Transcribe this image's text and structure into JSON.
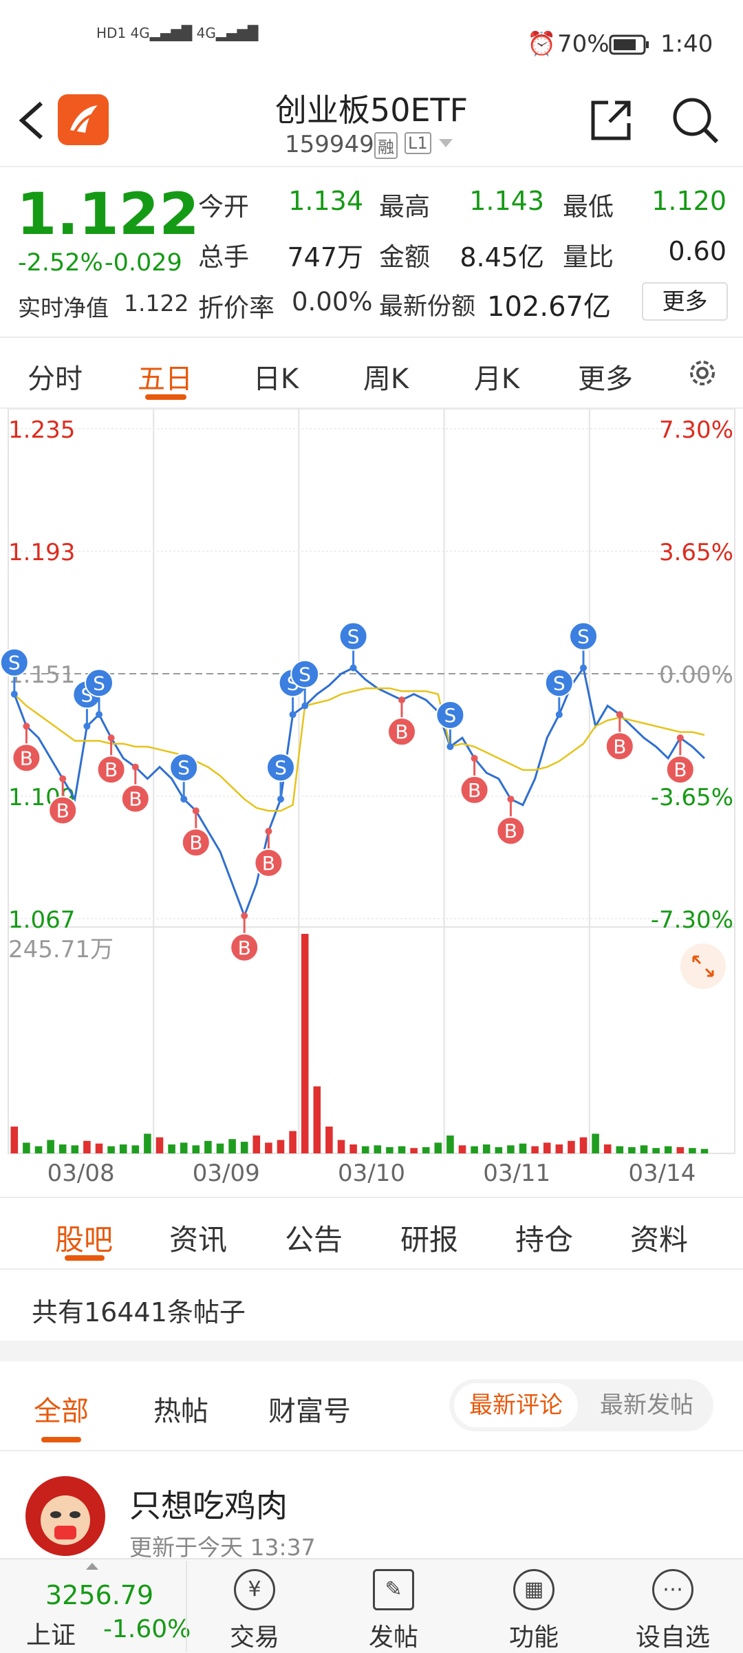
{
  "status_bar": {
    "battery": "70%",
    "time": "1:40"
  },
  "header": {
    "title": "创业板50ETF",
    "code": "159949",
    "badges": [
      "融",
      "L1"
    ]
  },
  "quote": {
    "price": "1.122",
    "change_pct": "-2.52%",
    "change": "-0.029",
    "nav_label": "实时净值",
    "nav": "1.122",
    "stats": [
      {
        "label": "今开",
        "value": "1.134"
      },
      {
        "label": "最高",
        "value": "1.143"
      },
      {
        "label": "最低",
        "value": "1.120"
      },
      {
        "label": "总手",
        "value": "747万"
      },
      {
        "label": "金额",
        "value": "8.45亿"
      },
      {
        "label": "量比",
        "value": "0.60"
      }
    ],
    "discount_label": "折价率",
    "discount": "0.00%",
    "shares_label": "最新份额",
    "shares": "102.67亿",
    "more": "更多"
  },
  "chart_tabs": [
    "分时",
    "五日",
    "日K",
    "周K",
    "月K",
    "更多"
  ],
  "chart_data": {
    "type": "line",
    "ylim": [
      1.067,
      1.235
    ],
    "yticks": [
      1.235,
      1.193,
      1.151,
      1.109,
      1.067
    ],
    "y2lim": [
      -7.3,
      7.3
    ],
    "y2ticks": [
      {
        "value": 7.3,
        "label": "7.30%"
      },
      {
        "value": 3.65,
        "label": "3.65%"
      },
      {
        "value": 0,
        "label": "0.00%"
      },
      {
        "value": -3.65,
        "label": "-3.65%"
      },
      {
        "value": -7.3,
        "label": "-7.30%"
      }
    ],
    "day_labels": [
      "03/08",
      "03/09",
      "03/10",
      "03/11",
      "03/14"
    ],
    "series": [
      {
        "color": "#2f6fd0",
        "values": [
          1.144,
          1.133,
          1.129,
          1.122,
          1.115,
          1.108,
          1.133,
          1.137,
          1.129,
          1.122,
          1.119,
          1.115,
          1.119,
          1.115,
          1.108,
          1.104,
          1.097,
          1.09,
          1.079,
          1.068,
          1.079,
          1.097,
          1.108,
          1.137,
          1.14,
          1.144,
          1.147,
          1.151,
          1.153,
          1.149,
          1.146,
          1.144,
          1.142,
          1.144,
          1.142,
          1.138,
          1.126,
          1.129,
          1.122,
          1.117,
          1.115,
          1.108,
          1.106,
          1.115,
          1.129,
          1.137,
          1.147,
          1.153,
          1.133,
          1.14,
          1.137,
          1.133,
          1.129,
          1.126,
          1.122,
          1.129,
          1.126,
          1.122
        ]
      },
      {
        "color": "#e6c31a",
        "values": [
          1.144,
          1.14,
          1.137,
          1.134,
          1.131,
          1.128,
          1.128,
          1.128,
          1.127,
          1.127,
          1.126,
          1.126,
          1.125,
          1.124,
          1.123,
          1.121,
          1.119,
          1.116,
          1.112,
          1.108,
          1.105,
          1.104,
          1.104,
          1.106,
          1.14,
          1.141,
          1.142,
          1.144,
          1.145,
          1.146,
          1.146,
          1.146,
          1.145,
          1.145,
          1.145,
          1.144,
          1.126,
          1.127,
          1.126,
          1.124,
          1.122,
          1.12,
          1.118,
          1.118,
          1.119,
          1.121,
          1.124,
          1.127,
          1.133,
          1.135,
          1.136,
          1.135,
          1.134,
          1.133,
          1.132,
          1.131,
          1.131,
          1.13
        ]
      }
    ],
    "volume": {
      "ylim": [
        0,
        245.71
      ],
      "yticks": [
        {
          "value": 245.71,
          "label": "245.71万"
        }
      ],
      "values": [
        30,
        12,
        8,
        15,
        10,
        9,
        14,
        11,
        8,
        10,
        9,
        22,
        18,
        10,
        12,
        9,
        14,
        11,
        16,
        13,
        20,
        12,
        15,
        25,
        245.71,
        75,
        30,
        15,
        10,
        8,
        9,
        7,
        8,
        6,
        7,
        12,
        20,
        9,
        8,
        10,
        7,
        9,
        11,
        8,
        12,
        10,
        14,
        18,
        22,
        10,
        8,
        7,
        9,
        6,
        8,
        7,
        6,
        5
      ]
    },
    "trade_markers": [
      {
        "label": "S",
        "index": 0
      },
      {
        "label": "B",
        "index": 1
      },
      {
        "label": "B",
        "index": 4
      },
      {
        "label": "S",
        "index": 6
      },
      {
        "label": "S",
        "index": 7
      },
      {
        "label": "B",
        "index": 8
      },
      {
        "label": "B",
        "index": 10
      },
      {
        "label": "S",
        "index": 14
      },
      {
        "label": "B",
        "index": 15
      },
      {
        "label": "B",
        "index": 19
      },
      {
        "label": "B",
        "index": 21
      },
      {
        "label": "S",
        "index": 22
      },
      {
        "label": "S",
        "index": 23
      },
      {
        "label": "S",
        "index": 24
      },
      {
        "label": "S",
        "index": 28
      },
      {
        "label": "B",
        "index": 32
      },
      {
        "label": "S",
        "index": 36
      },
      {
        "label": "B",
        "index": 38
      },
      {
        "label": "B",
        "index": 41
      },
      {
        "label": "S",
        "index": 45
      },
      {
        "label": "S",
        "index": 47
      },
      {
        "label": "B",
        "index": 50
      },
      {
        "label": "B",
        "index": 55
      }
    ]
  },
  "forum": {
    "tabs": [
      "股吧",
      "资讯",
      "公告",
      "研报",
      "持仓",
      "资料"
    ],
    "count_text": "共有16441条帖子",
    "sub_tabs": [
      "全部",
      "热帖",
      "财富号"
    ],
    "sort": [
      "最新评论",
      "最新发帖"
    ],
    "post": {
      "user": "只想吃鸡肉",
      "time": "更新于今天 13:37"
    }
  },
  "bottom_bar": {
    "index_value": "3256.79",
    "index_name": "上证",
    "index_change": "-1.60%",
    "buttons": [
      "交易",
      "发帖",
      "功能",
      "设自选"
    ]
  }
}
